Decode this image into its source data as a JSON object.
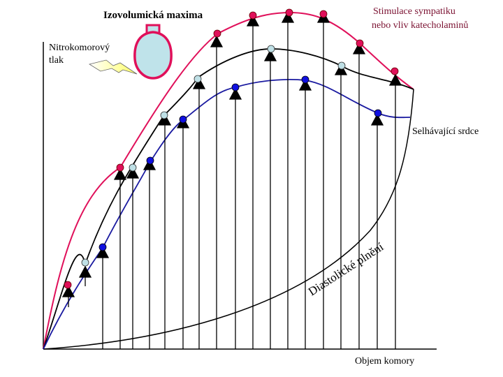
{
  "labels": {
    "isovolumic_max": "Izovolumická maxima",
    "sympathetic": [
      "Stimulace sympatiku",
      "nebo vliv katecholaminů"
    ],
    "pressure": [
      "Nitrokomorový",
      "tlak"
    ],
    "failing_heart": "Selhávající srdce",
    "diastolic_filling": "Diastolické plnění",
    "volume": "Objem komory"
  },
  "colors": {
    "sympathetic": "#e0105a",
    "normal": "#000000",
    "failing": "#1a1aa0",
    "normal_marker": "#bfe0e6",
    "failing_marker": "#1010e0",
    "ventricle": "#bfe3ea",
    "ventricle_border": "#e0105a",
    "bolt": "#ffff99"
  },
  "icons": [
    "ventricle-icon",
    "lightning-bolt-icon"
  ]
}
